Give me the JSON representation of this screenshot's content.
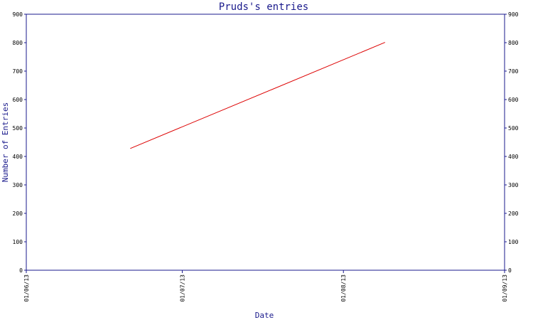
{
  "chart_data": {
    "type": "line",
    "title": "Pruds's entries",
    "xlabel": "Date",
    "ylabel": "Number of Entries",
    "x_ticks": [
      "01/06/13",
      "01/07/13",
      "01/08/13",
      "01/09/13"
    ],
    "ylim": [
      0,
      900
    ],
    "y_ticks": [
      0,
      100,
      200,
      300,
      400,
      500,
      600,
      700,
      800,
      900
    ],
    "series": [
      {
        "x": [
          "2013-06-21",
          "2013-08-09"
        ],
        "y": [
          428,
          801
        ]
      }
    ],
    "grid": false,
    "legend": "none",
    "colors": {
      "axis": "#1a1a8c",
      "line": "#dd0000",
      "text": "#000000"
    }
  }
}
